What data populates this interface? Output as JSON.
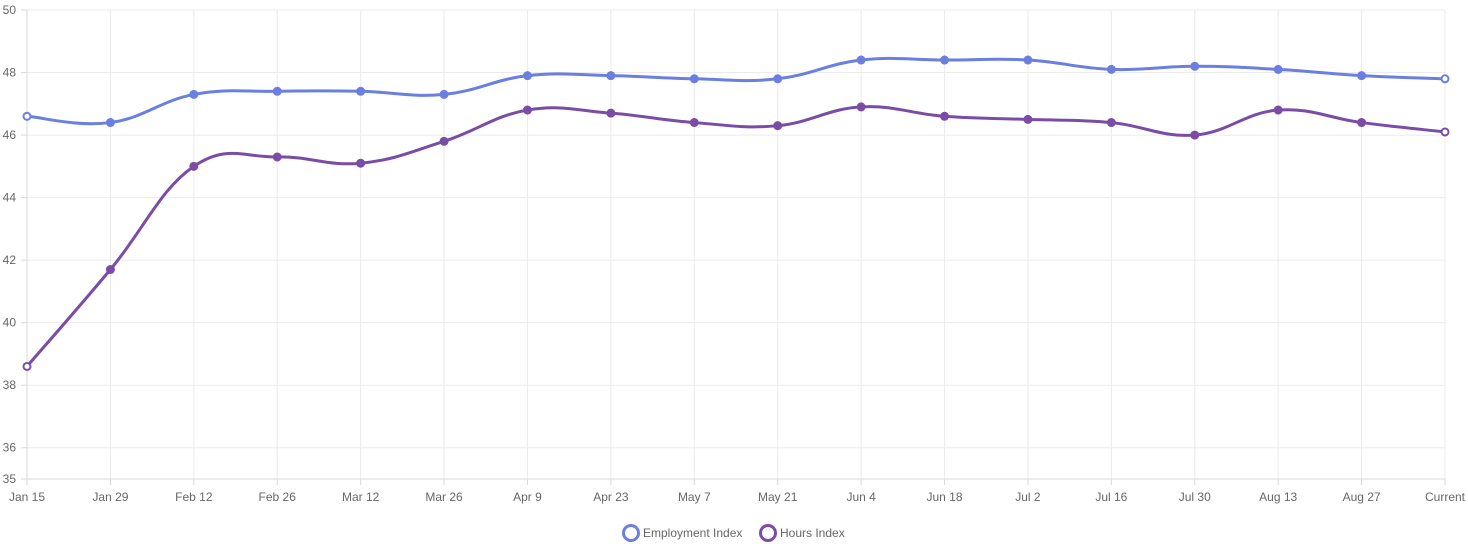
{
  "chart_data": {
    "type": "line",
    "title": "",
    "xlabel": "",
    "ylabel": "",
    "categories": [
      "Jan 15",
      "Jan 29",
      "Feb 12",
      "Feb 26",
      "Mar 12",
      "Mar 26",
      "Apr 9",
      "Apr 23",
      "May 7",
      "May 21",
      "Jun 4",
      "Jun 18",
      "Jul 2",
      "Jul 16",
      "Jul 30",
      "Aug 13",
      "Aug 27",
      "Current"
    ],
    "ylim": [
      35,
      50
    ],
    "yticks": [
      35,
      36,
      38,
      40,
      42,
      44,
      46,
      48,
      50
    ],
    "grid": true,
    "legend_position": "bottom-center",
    "series": [
      {
        "name": "Employment Index",
        "color": "#6a7fe0",
        "values": [
          46.6,
          46.4,
          47.3,
          47.4,
          47.4,
          47.3,
          47.9,
          47.9,
          47.8,
          47.8,
          48.4,
          48.4,
          48.4,
          48.1,
          48.2,
          48.1,
          47.9,
          47.8
        ]
      },
      {
        "name": "Hours Index",
        "color": "#7a4ca6",
        "values": [
          38.6,
          41.7,
          45.0,
          45.3,
          45.1,
          45.8,
          46.8,
          46.7,
          46.4,
          46.3,
          46.9,
          46.6,
          46.5,
          46.4,
          46.0,
          46.8,
          46.4,
          46.1
        ]
      }
    ]
  }
}
